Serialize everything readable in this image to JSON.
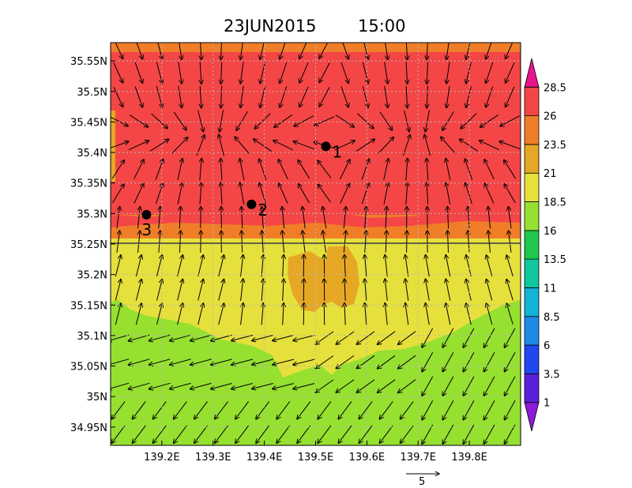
{
  "chart_data": {
    "type": "heatmap",
    "title": {
      "date": "23JUN2015",
      "time": "15:00"
    },
    "x_ticks": [
      {
        "value": 139.2,
        "label": "139.2E"
      },
      {
        "value": 139.3,
        "label": "139.3E"
      },
      {
        "value": 139.4,
        "label": "139.4E"
      },
      {
        "value": 139.5,
        "label": "139.5E"
      },
      {
        "value": 139.6,
        "label": "139.6E"
      },
      {
        "value": 139.7,
        "label": "139.7E"
      },
      {
        "value": 139.8,
        "label": "139.8E"
      }
    ],
    "y_ticks": [
      {
        "value": 35.55,
        "label": "35.55N"
      },
      {
        "value": 35.5,
        "label": "35.5N"
      },
      {
        "value": 35.45,
        "label": "35.45N"
      },
      {
        "value": 35.4,
        "label": "35.4N"
      },
      {
        "value": 35.35,
        "label": "35.35N"
      },
      {
        "value": 35.3,
        "label": "35.3N"
      },
      {
        "value": 35.25,
        "label": "35.25N"
      },
      {
        "value": 35.2,
        "label": "35.2N"
      },
      {
        "value": 35.15,
        "label": "35.15N"
      },
      {
        "value": 35.1,
        "label": "35.1N"
      },
      {
        "value": 35.05,
        "label": "35.05N"
      },
      {
        "value": 35.0,
        "label": "35N"
      },
      {
        "value": 34.95,
        "label": "34.95N"
      }
    ],
    "xlim": [
      139.1,
      139.9
    ],
    "ylim": [
      34.92,
      35.58
    ],
    "grid": true,
    "colorbar": {
      "levels": [
        "1",
        "3.5",
        "6",
        "8.5",
        "11",
        "13.5",
        "16",
        "18.5",
        "21",
        "23.5",
        "26",
        "28.5"
      ],
      "colors": [
        "#8c1ad9",
        "#5a20d9",
        "#2048f0",
        "#1c8ae6",
        "#12b4d6",
        "#10c8a0",
        "#1ec84a",
        "#96e030",
        "#e6e03c",
        "#e6a824",
        "#f07e28",
        "#f44646",
        "#e8148c"
      ]
    },
    "stations": [
      {
        "label": "1",
        "lon": 139.52,
        "lat": 35.41
      },
      {
        "label": "2",
        "lon": 139.375,
        "lat": 35.315
      },
      {
        "label": "3",
        "lon": 139.17,
        "lat": 35.298
      }
    ],
    "vector_reference": {
      "label": "5"
    },
    "coastline_lat": 35.25
  }
}
